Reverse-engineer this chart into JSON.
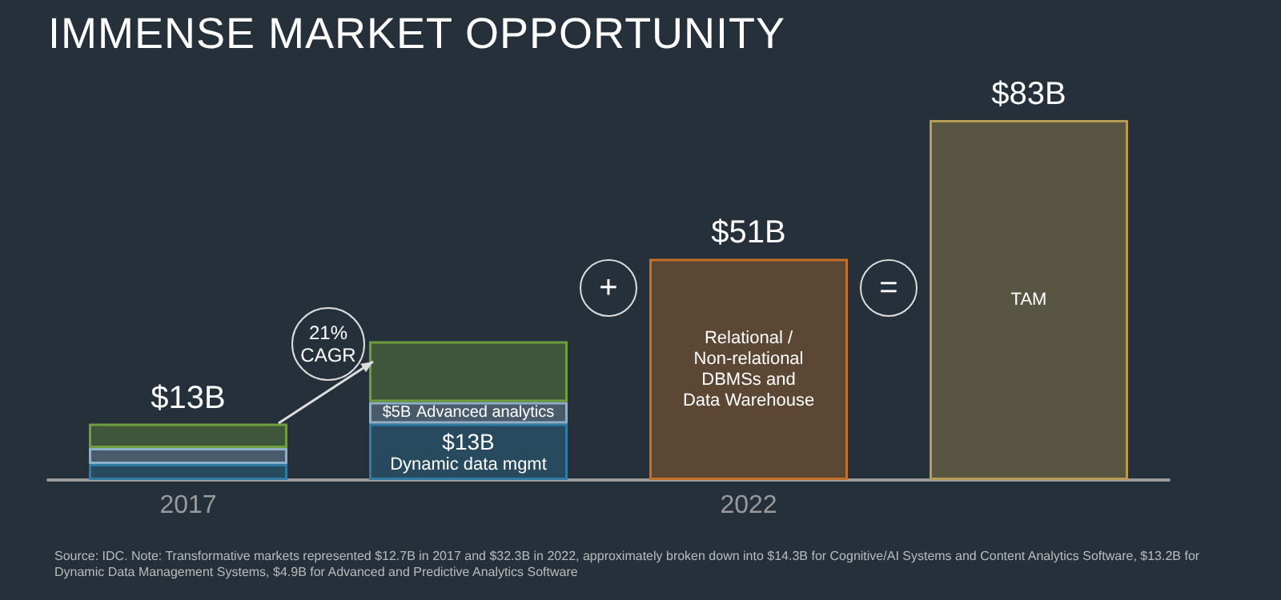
{
  "chart_data": {
    "type": "bar",
    "title": "IMMENSE MARKET OPPORTUNITY",
    "stacked": true,
    "legend": false,
    "categories": [
      "2017",
      null,
      "2022",
      null
    ],
    "series": [
      {
        "name": "Dynamic data mgmt",
        "color": "#2f7ba3",
        "values": [
          3.7,
          13,
          null,
          null
        ],
        "value_labels": [
          null,
          "$13B",
          null,
          null
        ]
      },
      {
        "name": "Advanced analytics",
        "color": "#8fb0c8",
        "values": [
          3.7,
          5,
          null,
          null
        ],
        "value_labels": [
          null,
          "$5B",
          null,
          null
        ]
      },
      {
        "color": "#6f9e3e",
        "values": [
          5.6,
          14,
          null,
          null
        ],
        "value_labels": [
          null,
          null,
          null,
          null
        ]
      },
      {
        "name": "Relational / Non-relational DBMSs and Data Warehouse",
        "color": "#c2712a",
        "values": [
          null,
          null,
          51,
          null
        ]
      },
      {
        "name": "TAM",
        "color": "#b89c55",
        "values": [
          null,
          null,
          null,
          83
        ]
      }
    ],
    "totals": [
      "$13B",
      null,
      "$51B",
      "$83B"
    ],
    "annotations": [
      "21% CAGR",
      "+",
      "=",
      "Source: IDC. Note: Transformative markets represented $12.7B in 2017 and $32.3B in 2022, approximately broken down into $14.3B for Cognitive/AI Systems and Content Analytics Software, $13.2B for Dynamic Data Management Systems, $4.9B for Advanced and Predictive Analytics Software"
    ]
  }
}
